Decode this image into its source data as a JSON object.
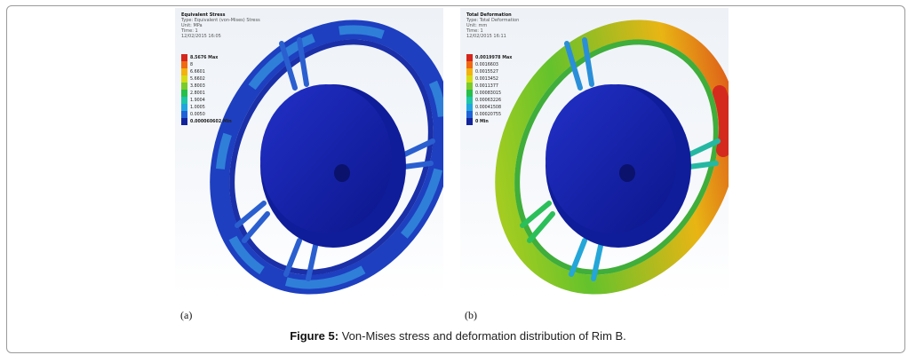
{
  "panel_a": {
    "title": "Equivalent Stress",
    "type_line": "Type: Equivalent (von-Mises) Stress",
    "unit_line": "Unit: MPa",
    "time_line": "Time: 1",
    "date_line": "12/02/2015 16:05",
    "legend": [
      {
        "label": "8.5676 Max",
        "color": "#d6261c"
      },
      {
        "label": "8",
        "color": "#f06a12"
      },
      {
        "label": "6.6601",
        "color": "#f3b20d"
      },
      {
        "label": "5.6602",
        "color": "#d6dc14"
      },
      {
        "label": "3.8003",
        "color": "#79cc2a"
      },
      {
        "label": "2.8001",
        "color": "#25bf49"
      },
      {
        "label": "1.9004",
        "color": "#1cc6a6"
      },
      {
        "label": "1.0005",
        "color": "#20a6de"
      },
      {
        "label": "0.0050",
        "color": "#1f62d8"
      },
      {
        "label": "0.000060602 Min",
        "color": "#12249c"
      }
    ],
    "sublabel": "(a)"
  },
  "panel_b": {
    "title": "Total Deformation",
    "type_line": "Type: Total Deformation",
    "unit_line": "Unit: mm",
    "time_line": "Time: 1",
    "date_line": "12/02/2015 16:11",
    "legend": [
      {
        "label": "0.0019978 Max",
        "color": "#d6261c"
      },
      {
        "label": "0.0016603",
        "color": "#f06a12"
      },
      {
        "label": "0.0015527",
        "color": "#f3b20d"
      },
      {
        "label": "0.0013452",
        "color": "#d6dc14"
      },
      {
        "label": "0.0011377",
        "color": "#79cc2a"
      },
      {
        "label": "0.00083015",
        "color": "#25bf49"
      },
      {
        "label": "0.00063226",
        "color": "#1cc6a6"
      },
      {
        "label": "0.00041508",
        "color": "#20a6de"
      },
      {
        "label": "0.00020755",
        "color": "#1f62d8"
      },
      {
        "label": "0 Min",
        "color": "#12249c"
      }
    ],
    "sublabel": "(b)"
  },
  "caption": {
    "label": "Figure 5:",
    "text": " Von-Mises stress and deformation distribution of Rim B."
  }
}
